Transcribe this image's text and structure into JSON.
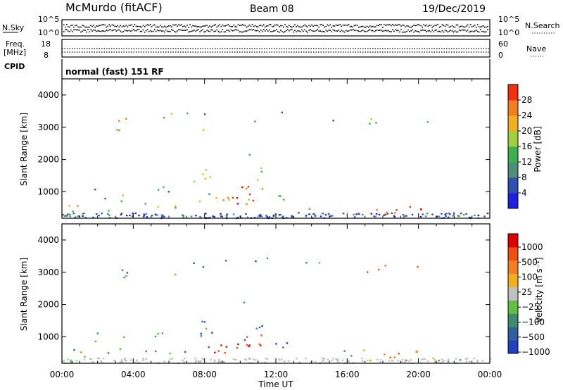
{
  "header": {
    "station": "McMurdo (fitACF)",
    "beam": "Beam 08",
    "date": "19/Dec/2019"
  },
  "noise_panel": {
    "left_label": "N.Sky",
    "right_label": "N.Search",
    "left_ticks": [
      "10^5",
      "10^0"
    ],
    "right_ticks": [
      "10^5",
      "10^0"
    ]
  },
  "freq_panel": {
    "left_label_1": "Freq.",
    "left_label_2": "[MHz]",
    "right_label": "Nave",
    "left_ticks": [
      "18",
      "8"
    ],
    "right_ticks": [
      "60",
      "0"
    ]
  },
  "cpid_panel": {
    "label": "CPID",
    "text": "normal (fast) 151 RF"
  },
  "x_ticks": [
    "00:00",
    "04:00",
    "08:00",
    "12:00",
    "16:00",
    "20:00",
    "00:00"
  ],
  "x_label": "Time UT",
  "colors": {
    "power": [
      "#1f1fe0",
      "#2f50b0",
      "#4f8f7a",
      "#3fb050",
      "#a0d040",
      "#f0b020",
      "#f08020",
      "#f03010",
      "#e00000"
    ],
    "velocity": [
      "#2040c0",
      "#3060a0",
      "#408a70",
      "#60c040",
      "#c0c0c0",
      "#f0b020",
      "#f08020",
      "#f05010",
      "#e00000"
    ]
  },
  "chart_data": [
    {
      "type": "heatmap",
      "name_key": "power",
      "ylabel": "Slant Range [km]",
      "yticks": [
        "1000",
        "2000",
        "3000",
        "4000"
      ],
      "ylim": [
        180,
        4500
      ],
      "xlim": [
        "00:00",
        "24:00"
      ],
      "colorbar_label": "Power [dB]",
      "colorbar_ticks": [
        "4",
        "8",
        "12",
        "16",
        "20",
        "24",
        "28"
      ],
      "colorbar_range": [
        0,
        32
      ]
    },
    {
      "type": "heatmap",
      "name_key": "velocity",
      "ylabel": "Slant Range [km]",
      "yticks": [
        "1000",
        "2000",
        "3000",
        "4000"
      ],
      "ylim": [
        180,
        4500
      ],
      "xlim": [
        "00:00",
        "24:00"
      ],
      "colorbar_label": "Velocity [m s⁻¹]",
      "colorbar_ticks": [
        "1000",
        "500",
        "100",
        "25",
        "−25",
        "−100",
        "−500",
        "−1000"
      ]
    }
  ]
}
